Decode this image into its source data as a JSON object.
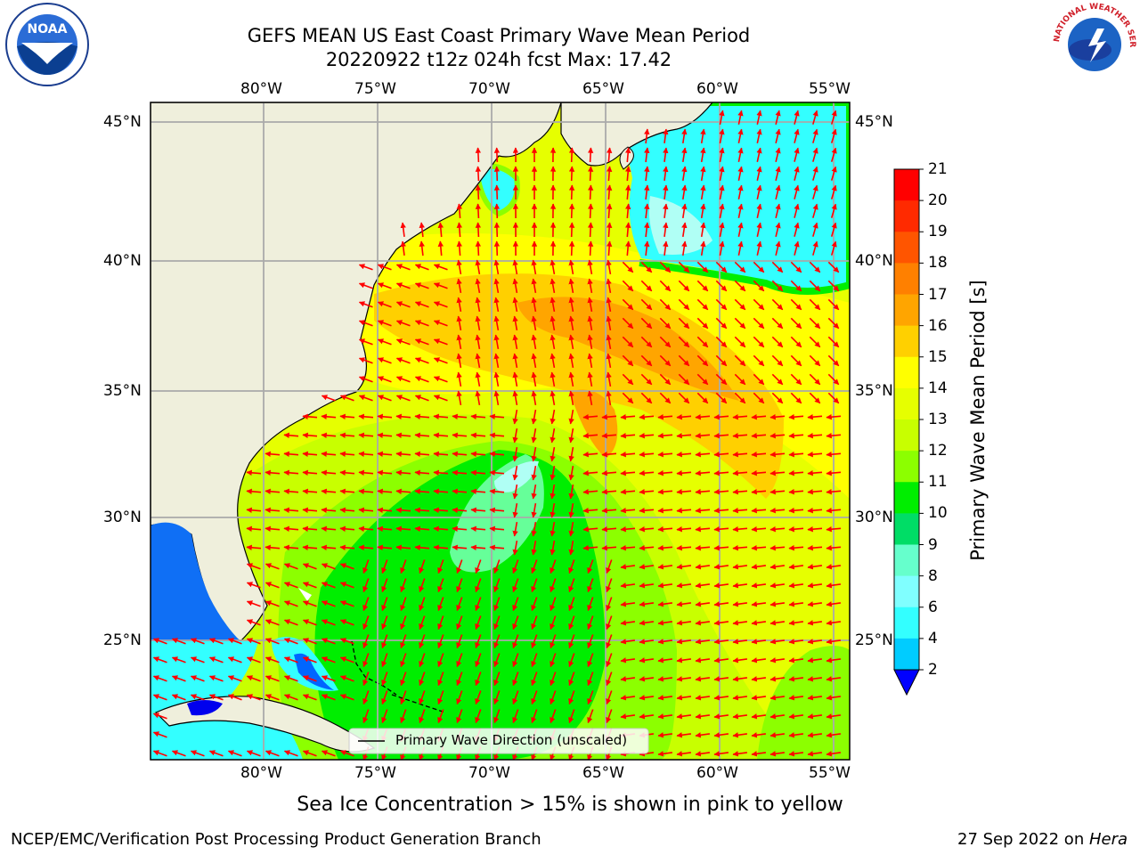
{
  "title_line1": "GEFS MEAN US East Coast Primary Wave Mean Period",
  "title_line2": "20220922 t12z 024h fcst   Max: 17.42",
  "lon_ticks": [
    "80°W",
    "75°W",
    "70°W",
    "65°W",
    "60°W",
    "55°W"
  ],
  "lat_ticks": [
    "45°N",
    "40°N",
    "35°N",
    "30°N",
    "25°N"
  ],
  "legend_label": "Primary Wave Direction (unscaled)",
  "colorbar": {
    "label": "Primary Wave Mean Period [s]",
    "ticks": [
      "21",
      "20",
      "19",
      "18",
      "17",
      "16",
      "15",
      "14",
      "13",
      "12",
      "11",
      "10",
      "9",
      "8",
      "6",
      "4",
      "2"
    ],
    "colors": [
      "#ff0000",
      "#ff2a00",
      "#ff5500",
      "#ff8000",
      "#ffa500",
      "#ffd000",
      "#ffff00",
      "#e6ff00",
      "#c8ff00",
      "#8cff00",
      "#00ee00",
      "#00dd66",
      "#66ffcc",
      "#80ffff",
      "#33ffff",
      "#00ccff",
      "#0066ff"
    ],
    "extend_color": "#0000ff"
  },
  "logos": {
    "left": "NOAA",
    "right": "NATIONAL WEATHER SERVICE"
  },
  "subtitle": "Sea Ice Concentration > 15% is shown in pink to yellow",
  "footer_left": "NCEP/EMC/Verification Post Processing Product Generation Branch",
  "footer_right_date": "27 Sep 2022 on ",
  "footer_right_machine": "Hera",
  "field_max": 17.42,
  "arrow_color": "#ff0000"
}
